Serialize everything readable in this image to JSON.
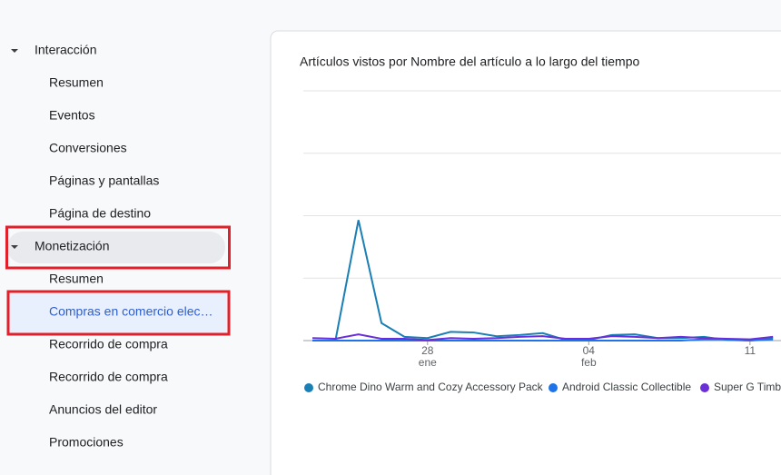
{
  "sidebar": {
    "sections": [
      {
        "label": "Interacción",
        "items": [
          "Resumen",
          "Eventos",
          "Conversiones",
          "Páginas y pantallas",
          "Página de destino"
        ]
      },
      {
        "label": "Monetización",
        "items": [
          "Resumen",
          "Compras en comercio elec…",
          "Recorrido de compra",
          "Recorrido de compra",
          "Anuncios del editor",
          "Promociones"
        ]
      }
    ]
  },
  "chart_data": {
    "type": "line",
    "title": "Artículos vistos por Nombre del artículo a lo largo del tiempo",
    "categories": [
      null,
      null,
      null,
      null,
      null,
      "28",
      null,
      null,
      null,
      null,
      null,
      null,
      "04",
      null,
      null,
      null,
      null,
      null,
      null,
      "11",
      null
    ],
    "category_sublabels": [
      null,
      null,
      null,
      null,
      null,
      "ene",
      null,
      null,
      null,
      null,
      null,
      null,
      "feb",
      null,
      null,
      null,
      null,
      null,
      null,
      null,
      null
    ],
    "ylim": [
      0,
      4
    ],
    "yticks": [
      0,
      1,
      2,
      3,
      4
    ],
    "grid": true,
    "series": [
      {
        "name": "Chrome Dino Warm and Cozy Accessory Pack",
        "color": "#1a7fb5",
        "values": [
          0,
          0,
          1.93,
          0.28,
          0.06,
          0.04,
          0.14,
          0.13,
          0.07,
          0.09,
          0.12,
          0.01,
          0.01,
          0.09,
          0.1,
          0.04,
          0.04,
          0.06,
          0.01,
          0,
          0.04
        ]
      },
      {
        "name": "Android Classic Collectible",
        "color": "#1e73e8",
        "values": [
          0,
          0,
          0,
          0,
          0,
          0,
          0,
          0,
          0,
          0,
          0,
          0,
          0,
          0,
          0,
          0,
          0,
          0.02,
          0.02,
          0,
          0.02
        ]
      },
      {
        "name": "Super G Timbu",
        "color": "#6a2fd6",
        "values": [
          0.04,
          0.03,
          0.1,
          0.03,
          0.03,
          0.01,
          0.04,
          0.03,
          0.04,
          0.06,
          0.07,
          0.03,
          0.03,
          0.07,
          0.06,
          0.04,
          0.06,
          0.04,
          0.03,
          0.02,
          0.06
        ]
      }
    ]
  }
}
